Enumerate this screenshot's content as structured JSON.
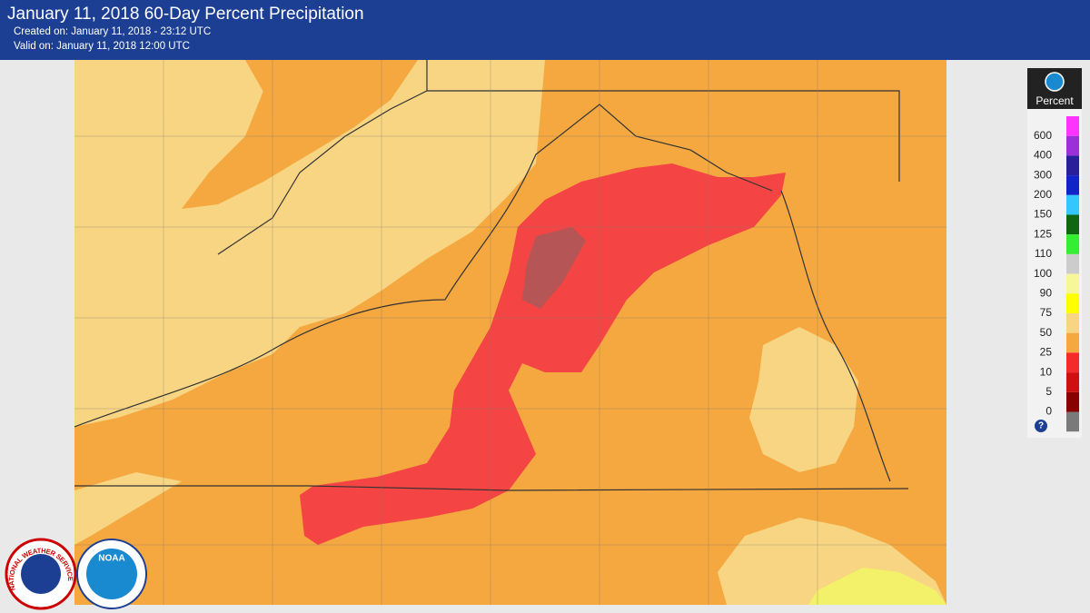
{
  "header": {
    "title": "January 11, 2018 60-Day Percent Precipitation",
    "created": "Created on: January 11, 2018 - 23:12 UTC",
    "valid": "Valid on: January 11, 2018 12:00 UTC"
  },
  "legend": {
    "title": "Percent",
    "labels": [
      600,
      400,
      300,
      200,
      150,
      125,
      110,
      100,
      90,
      75,
      50,
      25,
      10,
      5,
      0
    ],
    "help": "?"
  },
  "logos": {
    "nws": "NATIONAL WEATHER SERVICE",
    "noaa": "NOAA"
  }
}
